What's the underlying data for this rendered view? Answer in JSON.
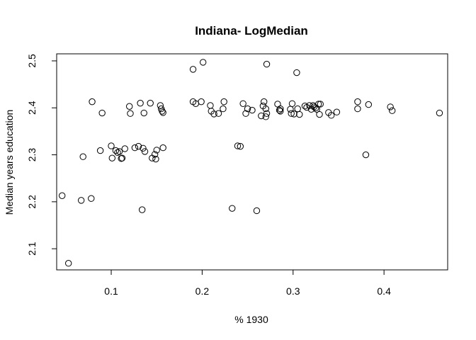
{
  "chart_data": {
    "type": "scatter",
    "title": "Indiana- LogMedian",
    "xlabel": "% 1930",
    "ylabel": "Median years education",
    "xlim": [
      0.04,
      0.47
    ],
    "ylim": [
      2.055,
      2.515
    ],
    "xticks": [
      0.1,
      0.2,
      0.3,
      0.4
    ],
    "xtick_labels": [
      "0.1",
      "0.2",
      "0.3",
      "0.4"
    ],
    "yticks": [
      2.1,
      2.2,
      2.3,
      2.4,
      2.5
    ],
    "ytick_labels": [
      "2.1",
      "2.2",
      "2.3",
      "2.4",
      "2.5"
    ],
    "grid": false,
    "points": [
      [
        0.046,
        2.213
      ],
      [
        0.053,
        2.069
      ],
      [
        0.067,
        2.203
      ],
      [
        0.069,
        2.296
      ],
      [
        0.078,
        2.207
      ],
      [
        0.079,
        2.413
      ],
      [
        0.088,
        2.309
      ],
      [
        0.09,
        2.389
      ],
      [
        0.1,
        2.319
      ],
      [
        0.101,
        2.293
      ],
      [
        0.105,
        2.309
      ],
      [
        0.107,
        2.305
      ],
      [
        0.109,
        2.307
      ],
      [
        0.111,
        2.292
      ],
      [
        0.112,
        2.293
      ],
      [
        0.115,
        2.313
      ],
      [
        0.12,
        2.403
      ],
      [
        0.121,
        2.388
      ],
      [
        0.126,
        2.315
      ],
      [
        0.13,
        2.318
      ],
      [
        0.132,
        2.41
      ],
      [
        0.134,
        2.183
      ],
      [
        0.135,
        2.314
      ],
      [
        0.136,
        2.389
      ],
      [
        0.137,
        2.307
      ],
      [
        0.143,
        2.41
      ],
      [
        0.145,
        2.293
      ],
      [
        0.148,
        2.301
      ],
      [
        0.149,
        2.291
      ],
      [
        0.15,
        2.31
      ],
      [
        0.154,
        2.405
      ],
      [
        0.155,
        2.398
      ],
      [
        0.156,
        2.393
      ],
      [
        0.157,
        2.315
      ],
      [
        0.157,
        2.39
      ],
      [
        0.19,
        2.482
      ],
      [
        0.19,
        2.413
      ],
      [
        0.193,
        2.409
      ],
      [
        0.199,
        2.413
      ],
      [
        0.201,
        2.497
      ],
      [
        0.209,
        2.405
      ],
      [
        0.21,
        2.393
      ],
      [
        0.213,
        2.387
      ],
      [
        0.218,
        2.388
      ],
      [
        0.223,
        2.398
      ],
      [
        0.224,
        2.413
      ],
      [
        0.233,
        2.186
      ],
      [
        0.239,
        2.319
      ],
      [
        0.242,
        2.318
      ],
      [
        0.245,
        2.409
      ],
      [
        0.248,
        2.388
      ],
      [
        0.25,
        2.398
      ],
      [
        0.255,
        2.395
      ],
      [
        0.26,
        2.181
      ],
      [
        0.265,
        2.383
      ],
      [
        0.267,
        2.404
      ],
      [
        0.268,
        2.413
      ],
      [
        0.27,
        2.381
      ],
      [
        0.27,
        2.398
      ],
      [
        0.271,
        2.493
      ],
      [
        0.271,
        2.388
      ],
      [
        0.283,
        2.408
      ],
      [
        0.285,
        2.395
      ],
      [
        0.286,
        2.398
      ],
      [
        0.286,
        2.393
      ],
      [
        0.297,
        2.397
      ],
      [
        0.298,
        2.388
      ],
      [
        0.299,
        2.409
      ],
      [
        0.301,
        2.387
      ],
      [
        0.304,
        2.475
      ],
      [
        0.305,
        2.398
      ],
      [
        0.307,
        2.386
      ],
      [
        0.313,
        2.404
      ],
      [
        0.315,
        2.401
      ],
      [
        0.318,
        2.405
      ],
      [
        0.32,
        2.397
      ],
      [
        0.322,
        2.405
      ],
      [
        0.323,
        2.402
      ],
      [
        0.325,
        2.4
      ],
      [
        0.326,
        2.397
      ],
      [
        0.328,
        2.408
      ],
      [
        0.329,
        2.386
      ],
      [
        0.33,
        2.408
      ],
      [
        0.339,
        2.39
      ],
      [
        0.342,
        2.384
      ],
      [
        0.348,
        2.391
      ],
      [
        0.371,
        2.413
      ],
      [
        0.371,
        2.398
      ],
      [
        0.38,
        2.3
      ],
      [
        0.383,
        2.407
      ],
      [
        0.407,
        2.402
      ],
      [
        0.409,
        2.394
      ],
      [
        0.461,
        2.389
      ]
    ]
  }
}
